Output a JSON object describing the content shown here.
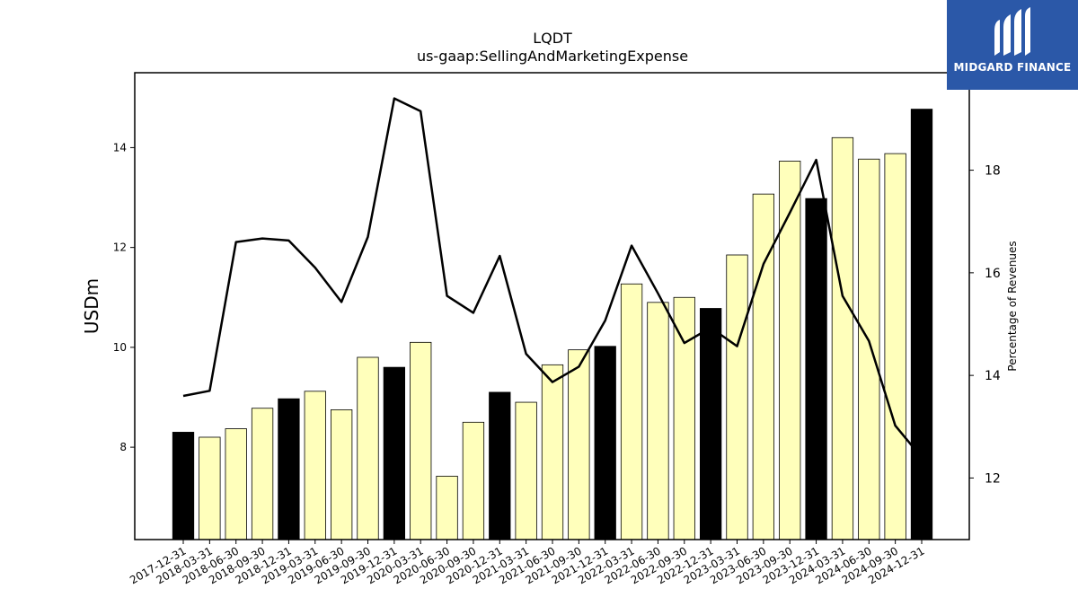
{
  "chart_data": {
    "type": "bar",
    "title": "LQDT",
    "subtitle": "us-gaap:SellingAndMarketingExpense",
    "ylabel": "USDm",
    "ylabel_right": "Percentage of Revenues",
    "categories": [
      "2017-12-31",
      "2018-03-31",
      "2018-06-30",
      "2018-09-30",
      "2018-12-31",
      "2019-03-31",
      "2019-06-30",
      "2019-09-30",
      "2019-12-31",
      "2020-03-31",
      "2020-06-30",
      "2020-09-30",
      "2020-12-31",
      "2021-03-31",
      "2021-06-30",
      "2021-09-30",
      "2021-12-31",
      "2022-03-31",
      "2022-06-30",
      "2022-09-30",
      "2022-12-31",
      "2023-03-31",
      "2023-06-30",
      "2023-09-30",
      "2023-12-31",
      "2024-03-31",
      "2024-06-30",
      "2024-09-30",
      "2024-12-31"
    ],
    "series": [
      {
        "type": "bar",
        "axis": "left",
        "values": [
          8.3,
          8.2,
          8.37,
          8.78,
          8.97,
          9.12,
          8.75,
          9.8,
          9.6,
          10.1,
          7.42,
          8.5,
          9.1,
          8.9,
          9.65,
          9.95,
          10.02,
          11.27,
          10.9,
          11.0,
          10.78,
          11.85,
          13.07,
          13.73,
          12.98,
          14.2,
          13.77,
          13.88,
          14.77
        ],
        "highlight_quarter": "12-31",
        "colors": {
          "normal": "#ffffbb",
          "highlight": "#000000",
          "edge": "#000000"
        }
      },
      {
        "type": "line",
        "axis": "right",
        "values": [
          13.6,
          13.7,
          16.6,
          16.67,
          16.63,
          16.1,
          15.43,
          16.7,
          19.4,
          19.15,
          15.55,
          15.22,
          16.33,
          14.42,
          13.87,
          14.17,
          15.07,
          16.53,
          15.6,
          14.63,
          14.93,
          14.57,
          16.17,
          17.17,
          18.2,
          15.55,
          14.67,
          13.02,
          12.4
        ],
        "color": "#000000"
      }
    ],
    "ylim": [
      6.15,
      15.5
    ],
    "ylim_right": [
      10.8,
      19.9
    ],
    "yticks": [
      8,
      10,
      12,
      14
    ],
    "yticks_right": [
      12,
      14,
      16,
      18
    ],
    "grid": false,
    "legend": "none"
  },
  "logo": {
    "text": "MIDGARD FINANCE",
    "background": "#2b58a8",
    "foreground": "#ffffff",
    "icon": "midgard-logo-mark"
  }
}
